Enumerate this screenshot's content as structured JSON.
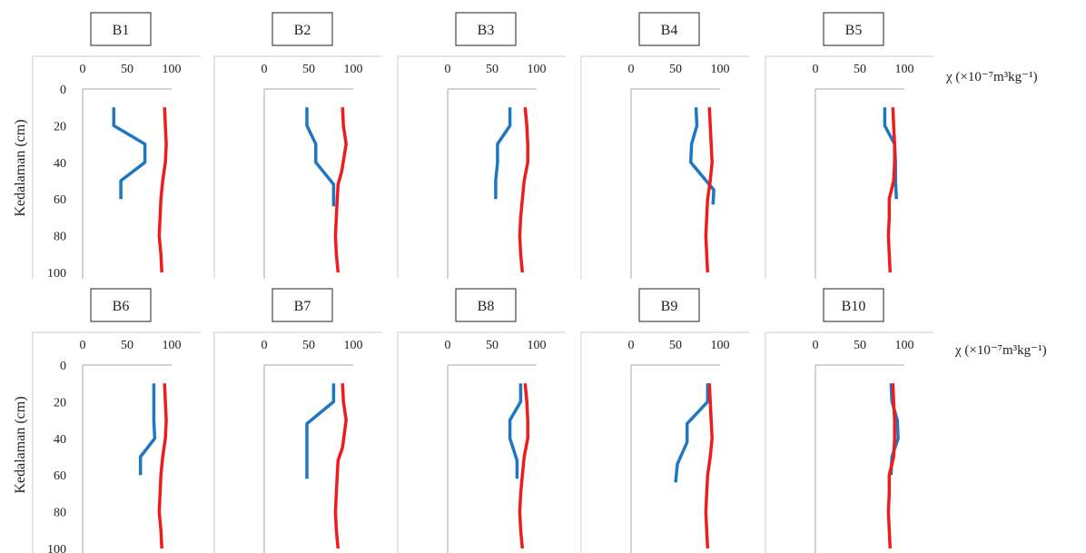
{
  "figure": {
    "ylabel": "Kedalaman (cm)",
    "unit_label": "χ  (×10⁻⁷m³kg⁻¹)",
    "colors": {
      "series_a": "#1f77c4",
      "series_b": "#ee1c1c",
      "axis": "#aaaaaa",
      "panel_border": "#cccccc"
    }
  },
  "chart_data": [
    {
      "type": "line",
      "title": "B1",
      "x_ticks": [
        "0",
        "50",
        "100"
      ],
      "y_ticks": [
        "0",
        "20",
        "40",
        "60",
        "80",
        "100"
      ],
      "xlim": [
        0,
        100
      ],
      "ylim": [
        0,
        100
      ],
      "y_inverted": true,
      "grid": false,
      "series": [
        {
          "color": "#1f77c4",
          "points": [
            [
              35,
              10
            ],
            [
              35,
              20
            ],
            [
              70,
              30
            ],
            [
              70,
              40
            ],
            [
              43,
              50
            ],
            [
              43,
              60
            ]
          ]
        },
        {
          "color": "#ee1c1c",
          "points": [
            [
              92,
              10
            ],
            [
              93,
              20
            ],
            [
              94,
              30
            ],
            [
              93,
              40
            ],
            [
              90,
              50
            ],
            [
              88,
              60
            ],
            [
              87,
              70
            ],
            [
              86,
              80
            ],
            [
              88,
              90
            ],
            [
              89,
              100
            ]
          ]
        }
      ]
    },
    {
      "type": "line",
      "title": "B2",
      "x_ticks": [
        "0",
        "50",
        "100"
      ],
      "y_ticks": [
        "0",
        "20",
        "40",
        "60",
        "80",
        "100"
      ],
      "xlim": [
        0,
        100
      ],
      "ylim": [
        0,
        100
      ],
      "y_inverted": true,
      "grid": false,
      "series": [
        {
          "color": "#1f77c4",
          "points": [
            [
              48,
              10
            ],
            [
              48,
              20
            ],
            [
              58,
              30
            ],
            [
              58,
              40
            ],
            [
              78,
              52
            ],
            [
              78,
              64
            ]
          ]
        },
        {
          "color": "#ee1c1c",
          "points": [
            [
              88,
              10
            ],
            [
              89,
              20
            ],
            [
              92,
              30
            ],
            [
              87,
              45
            ],
            [
              83,
              52
            ],
            [
              82,
              60
            ],
            [
              81,
              70
            ],
            [
              80,
              80
            ],
            [
              81,
              90
            ],
            [
              83,
              100
            ]
          ]
        }
      ]
    },
    {
      "type": "line",
      "title": "B3",
      "x_ticks": [
        "0",
        "50",
        "100"
      ],
      "y_ticks": [
        "0",
        "20",
        "40",
        "60",
        "80",
        "100"
      ],
      "xlim": [
        0,
        100
      ],
      "ylim": [
        0,
        100
      ],
      "y_inverted": true,
      "grid": false,
      "series": [
        {
          "color": "#1f77c4",
          "points": [
            [
              70,
              10
            ],
            [
              70,
              20
            ],
            [
              56,
              30
            ],
            [
              56,
              40
            ],
            [
              54,
              50
            ],
            [
              54,
              60
            ]
          ]
        },
        {
          "color": "#ee1c1c",
          "points": [
            [
              87,
              10
            ],
            [
              89,
              20
            ],
            [
              90,
              30
            ],
            [
              90,
              40
            ],
            [
              86,
              50
            ],
            [
              84,
              60
            ],
            [
              82,
              70
            ],
            [
              81,
              80
            ],
            [
              82,
              90
            ],
            [
              84,
              100
            ]
          ]
        }
      ]
    },
    {
      "type": "line",
      "title": "B4",
      "x_ticks": [
        "0",
        "50",
        "100"
      ],
      "y_ticks": [
        "0",
        "20",
        "40",
        "60",
        "80",
        "100"
      ],
      "xlim": [
        0,
        100
      ],
      "ylim": [
        0,
        100
      ],
      "y_inverted": true,
      "grid": false,
      "series": [
        {
          "color": "#1f77c4",
          "points": [
            [
              73,
              10
            ],
            [
              74,
              20
            ],
            [
              68,
              30
            ],
            [
              67,
              40
            ],
            [
              93,
              55
            ],
            [
              92,
              63
            ]
          ]
        },
        {
          "color": "#ee1c1c",
          "points": [
            [
              88,
              10
            ],
            [
              89,
              20
            ],
            [
              90,
              30
            ],
            [
              91,
              40
            ],
            [
              89,
              50
            ],
            [
              86,
              60
            ],
            [
              85,
              70
            ],
            [
              84,
              80
            ],
            [
              85,
              90
            ],
            [
              86,
              100
            ]
          ]
        }
      ]
    },
    {
      "type": "line",
      "title": "B5",
      "x_ticks": [
        "0",
        "50",
        "100"
      ],
      "y_ticks": [
        "0",
        "20",
        "40",
        "60",
        "80",
        "100"
      ],
      "xlim": [
        0,
        100
      ],
      "ylim": [
        0,
        100
      ],
      "y_inverted": true,
      "grid": false,
      "series": [
        {
          "color": "#1f77c4",
          "points": [
            [
              78,
              10
            ],
            [
              78,
              20
            ],
            [
              89,
              30
            ],
            [
              90,
              40
            ],
            [
              90,
              50
            ],
            [
              91,
              60
            ]
          ]
        },
        {
          "color": "#ee1c1c",
          "points": [
            [
              87,
              10
            ],
            [
              88,
              20
            ],
            [
              89,
              30
            ],
            [
              89,
              40
            ],
            [
              88,
              50
            ],
            [
              83,
              60
            ],
            [
              83,
              70
            ],
            [
              82,
              80
            ],
            [
              83,
              90
            ],
            [
              84,
              100
            ]
          ]
        }
      ]
    },
    {
      "type": "line",
      "title": "B6",
      "x_ticks": [
        "0",
        "50",
        "100"
      ],
      "y_ticks": [
        "0",
        "20",
        "40",
        "60",
        "80",
        "100"
      ],
      "xlim": [
        0,
        100
      ],
      "ylim": [
        0,
        100
      ],
      "y_inverted": true,
      "grid": false,
      "series": [
        {
          "color": "#1f77c4",
          "points": [
            [
              80,
              10
            ],
            [
              80,
              20
            ],
            [
              80,
              30
            ],
            [
              81,
              40
            ],
            [
              65,
              50
            ],
            [
              65,
              60
            ]
          ]
        },
        {
          "color": "#ee1c1c",
          "points": [
            [
              92,
              10
            ],
            [
              93,
              20
            ],
            [
              94,
              30
            ],
            [
              93,
              40
            ],
            [
              90,
              50
            ],
            [
              88,
              60
            ],
            [
              87,
              70
            ],
            [
              86,
              80
            ],
            [
              88,
              90
            ],
            [
              89,
              100
            ]
          ]
        }
      ]
    },
    {
      "type": "line",
      "title": "B7",
      "x_ticks": [
        "0",
        "50",
        "100"
      ],
      "y_ticks": [
        "0",
        "20",
        "40",
        "60",
        "80",
        "100"
      ],
      "xlim": [
        0,
        100
      ],
      "ylim": [
        0,
        100
      ],
      "y_inverted": true,
      "grid": false,
      "series": [
        {
          "color": "#1f77c4",
          "points": [
            [
              78,
              10
            ],
            [
              78,
              20
            ],
            [
              48,
              32
            ],
            [
              48,
              40
            ],
            [
              48,
              50
            ],
            [
              48,
              60
            ],
            [
              48,
              62
            ]
          ]
        },
        {
          "color": "#ee1c1c",
          "points": [
            [
              88,
              10
            ],
            [
              89,
              20
            ],
            [
              92,
              30
            ],
            [
              88,
              45
            ],
            [
              83,
              52
            ],
            [
              82,
              60
            ],
            [
              81,
              70
            ],
            [
              80,
              80
            ],
            [
              81,
              90
            ],
            [
              83,
              100
            ]
          ]
        }
      ]
    },
    {
      "type": "line",
      "title": "B8",
      "x_ticks": [
        "0",
        "50",
        "100"
      ],
      "y_ticks": [
        "0",
        "20",
        "40",
        "60",
        "80",
        "100"
      ],
      "xlim": [
        0,
        100
      ],
      "ylim": [
        0,
        100
      ],
      "y_inverted": true,
      "grid": false,
      "series": [
        {
          "color": "#1f77c4",
          "points": [
            [
              82,
              10
            ],
            [
              82,
              20
            ],
            [
              70,
              30
            ],
            [
              70,
              40
            ],
            [
              78,
              52
            ],
            [
              78,
              62
            ]
          ]
        },
        {
          "color": "#ee1c1c",
          "points": [
            [
              87,
              10
            ],
            [
              89,
              20
            ],
            [
              90,
              30
            ],
            [
              90,
              40
            ],
            [
              86,
              50
            ],
            [
              84,
              60
            ],
            [
              82,
              70
            ],
            [
              81,
              80
            ],
            [
              82,
              90
            ],
            [
              84,
              100
            ]
          ]
        }
      ]
    },
    {
      "type": "line",
      "title": "B9",
      "x_ticks": [
        "0",
        "50",
        "100"
      ],
      "y_ticks": [
        "0",
        "20",
        "40",
        "60",
        "80",
        "100"
      ],
      "xlim": [
        0,
        100
      ],
      "ylim": [
        0,
        100
      ],
      "y_inverted": true,
      "grid": false,
      "series": [
        {
          "color": "#1f77c4",
          "points": [
            [
              86,
              10
            ],
            [
              86,
              20
            ],
            [
              63,
              32
            ],
            [
              63,
              42
            ],
            [
              52,
              54
            ],
            [
              50,
              64
            ]
          ]
        },
        {
          "color": "#ee1c1c",
          "points": [
            [
              88,
              10
            ],
            [
              89,
              20
            ],
            [
              90,
              30
            ],
            [
              91,
              40
            ],
            [
              89,
              50
            ],
            [
              86,
              60
            ],
            [
              85,
              70
            ],
            [
              84,
              80
            ],
            [
              85,
              90
            ],
            [
              86,
              100
            ]
          ]
        }
      ]
    },
    {
      "type": "line",
      "title": "B10",
      "x_ticks": [
        "0",
        "50",
        "100"
      ],
      "y_ticks": [
        "0",
        "20",
        "40",
        "60",
        "80",
        "100"
      ],
      "xlim": [
        0,
        100
      ],
      "ylim": [
        0,
        100
      ],
      "y_inverted": true,
      "grid": false,
      "series": [
        {
          "color": "#1f77c4",
          "points": [
            [
              85,
              10
            ],
            [
              86,
              20
            ],
            [
              92,
              30
            ],
            [
              93,
              40
            ],
            [
              86,
              50
            ],
            [
              85,
              60
            ]
          ]
        },
        {
          "color": "#ee1c1c",
          "points": [
            [
              87,
              10
            ],
            [
              88,
              20
            ],
            [
              89,
              30
            ],
            [
              89,
              40
            ],
            [
              88,
              50
            ],
            [
              83,
              60
            ],
            [
              83,
              70
            ],
            [
              82,
              80
            ],
            [
              83,
              90
            ],
            [
              84,
              100
            ]
          ]
        }
      ]
    }
  ]
}
